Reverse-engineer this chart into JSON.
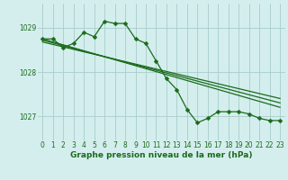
{
  "bg_color": "#d4eeee",
  "grid_color": "#a8cccc",
  "line_color": "#1a6b1a",
  "xlabel": "Graphe pression niveau de la mer (hPa)",
  "xlabel_color": "#1a6b1a",
  "ylabel_ticks": [
    1027,
    1028,
    1029
  ],
  "xlim": [
    -0.5,
    23.5
  ],
  "ylim": [
    1026.45,
    1029.55
  ],
  "series": [
    {
      "x": [
        0,
        1,
        2,
        3,
        4,
        5,
        6,
        7,
        8,
        9,
        10,
        11,
        12,
        13,
        14,
        15,
        16,
        17,
        18,
        19,
        20,
        21,
        22,
        23
      ],
      "y": [
        1028.75,
        1028.75,
        1028.55,
        1028.65,
        1028.9,
        1028.8,
        1029.15,
        1029.1,
        1029.1,
        1028.75,
        1028.65,
        1028.25,
        1027.85,
        1027.6,
        1027.15,
        1026.85,
        1026.95,
        1027.1,
        1027.1,
        1027.1,
        1027.05,
        1026.95,
        1026.9,
        1026.9
      ],
      "marker": "D",
      "markersize": 2.5,
      "linewidth": 0.9
    },
    {
      "x": [
        0,
        23
      ],
      "y": [
        1028.75,
        1027.2
      ],
      "marker": null,
      "markersize": 0,
      "linewidth": 0.9
    },
    {
      "x": [
        0,
        23
      ],
      "y": [
        1028.72,
        1027.3
      ],
      "marker": null,
      "markersize": 0,
      "linewidth": 0.9
    },
    {
      "x": [
        0,
        23
      ],
      "y": [
        1028.68,
        1027.4
      ],
      "marker": null,
      "markersize": 0,
      "linewidth": 0.9
    }
  ],
  "xticks": [
    0,
    1,
    2,
    3,
    4,
    5,
    6,
    7,
    8,
    9,
    10,
    11,
    12,
    13,
    14,
    15,
    16,
    17,
    18,
    19,
    20,
    21,
    22,
    23
  ],
  "tick_fontsize": 5.5,
  "label_fontsize": 6.5,
  "figsize": [
    3.2,
    2.0
  ],
  "dpi": 100
}
